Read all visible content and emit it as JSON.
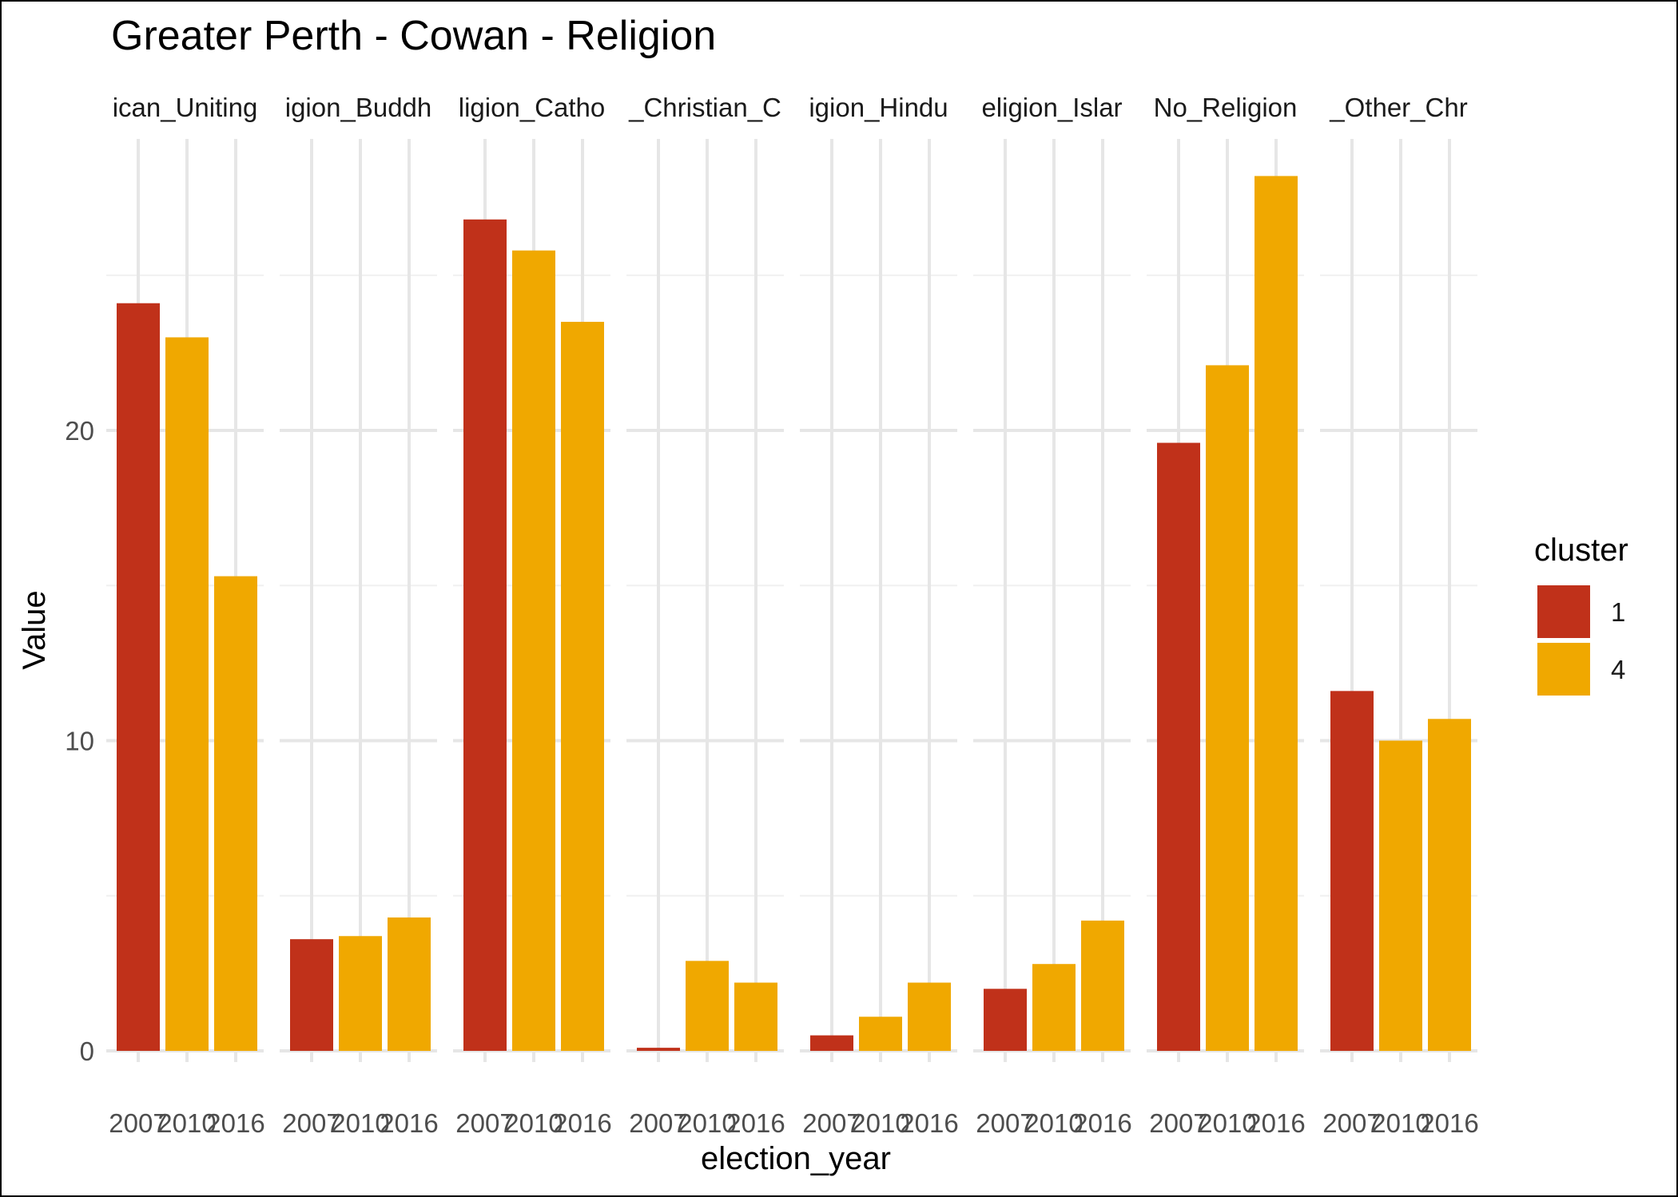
{
  "chart_data": {
    "type": "bar",
    "title": "Greater Perth - Cowan - Religion",
    "xlabel": "election_year",
    "ylabel": "Value",
    "ylim": [
      0,
      28
    ],
    "yticks": [
      0,
      10,
      20
    ],
    "grid": true,
    "legend_position": "right",
    "legend": {
      "title": "cluster",
      "items": [
        {
          "label": "1",
          "color": "#C0311A"
        },
        {
          "label": "4",
          "color": "#F0A800"
        }
      ]
    },
    "panel_labels": [
      "ican_Uniting",
      "igion_Buddh",
      "ligion_Catho",
      "_Christian_C",
      "igion_Hindu",
      "eligion_Islar",
      "No_Religion",
      "_Other_Chr"
    ],
    "categories": [
      "2007",
      "2010",
      "2016"
    ],
    "bar_clusters": [
      "1",
      "4",
      "4"
    ],
    "panels": [
      {
        "values": [
          24.1,
          23.0,
          15.3
        ]
      },
      {
        "values": [
          3.6,
          3.7,
          4.3
        ]
      },
      {
        "values": [
          26.8,
          25.8,
          23.5
        ]
      },
      {
        "values": [
          0.1,
          2.9,
          2.2
        ]
      },
      {
        "values": [
          0.5,
          1.1,
          2.2
        ]
      },
      {
        "values": [
          2.0,
          2.8,
          4.2
        ]
      },
      {
        "values": [
          19.6,
          22.1,
          28.2
        ]
      },
      {
        "values": [
          11.6,
          10.0,
          10.7
        ]
      }
    ]
  }
}
